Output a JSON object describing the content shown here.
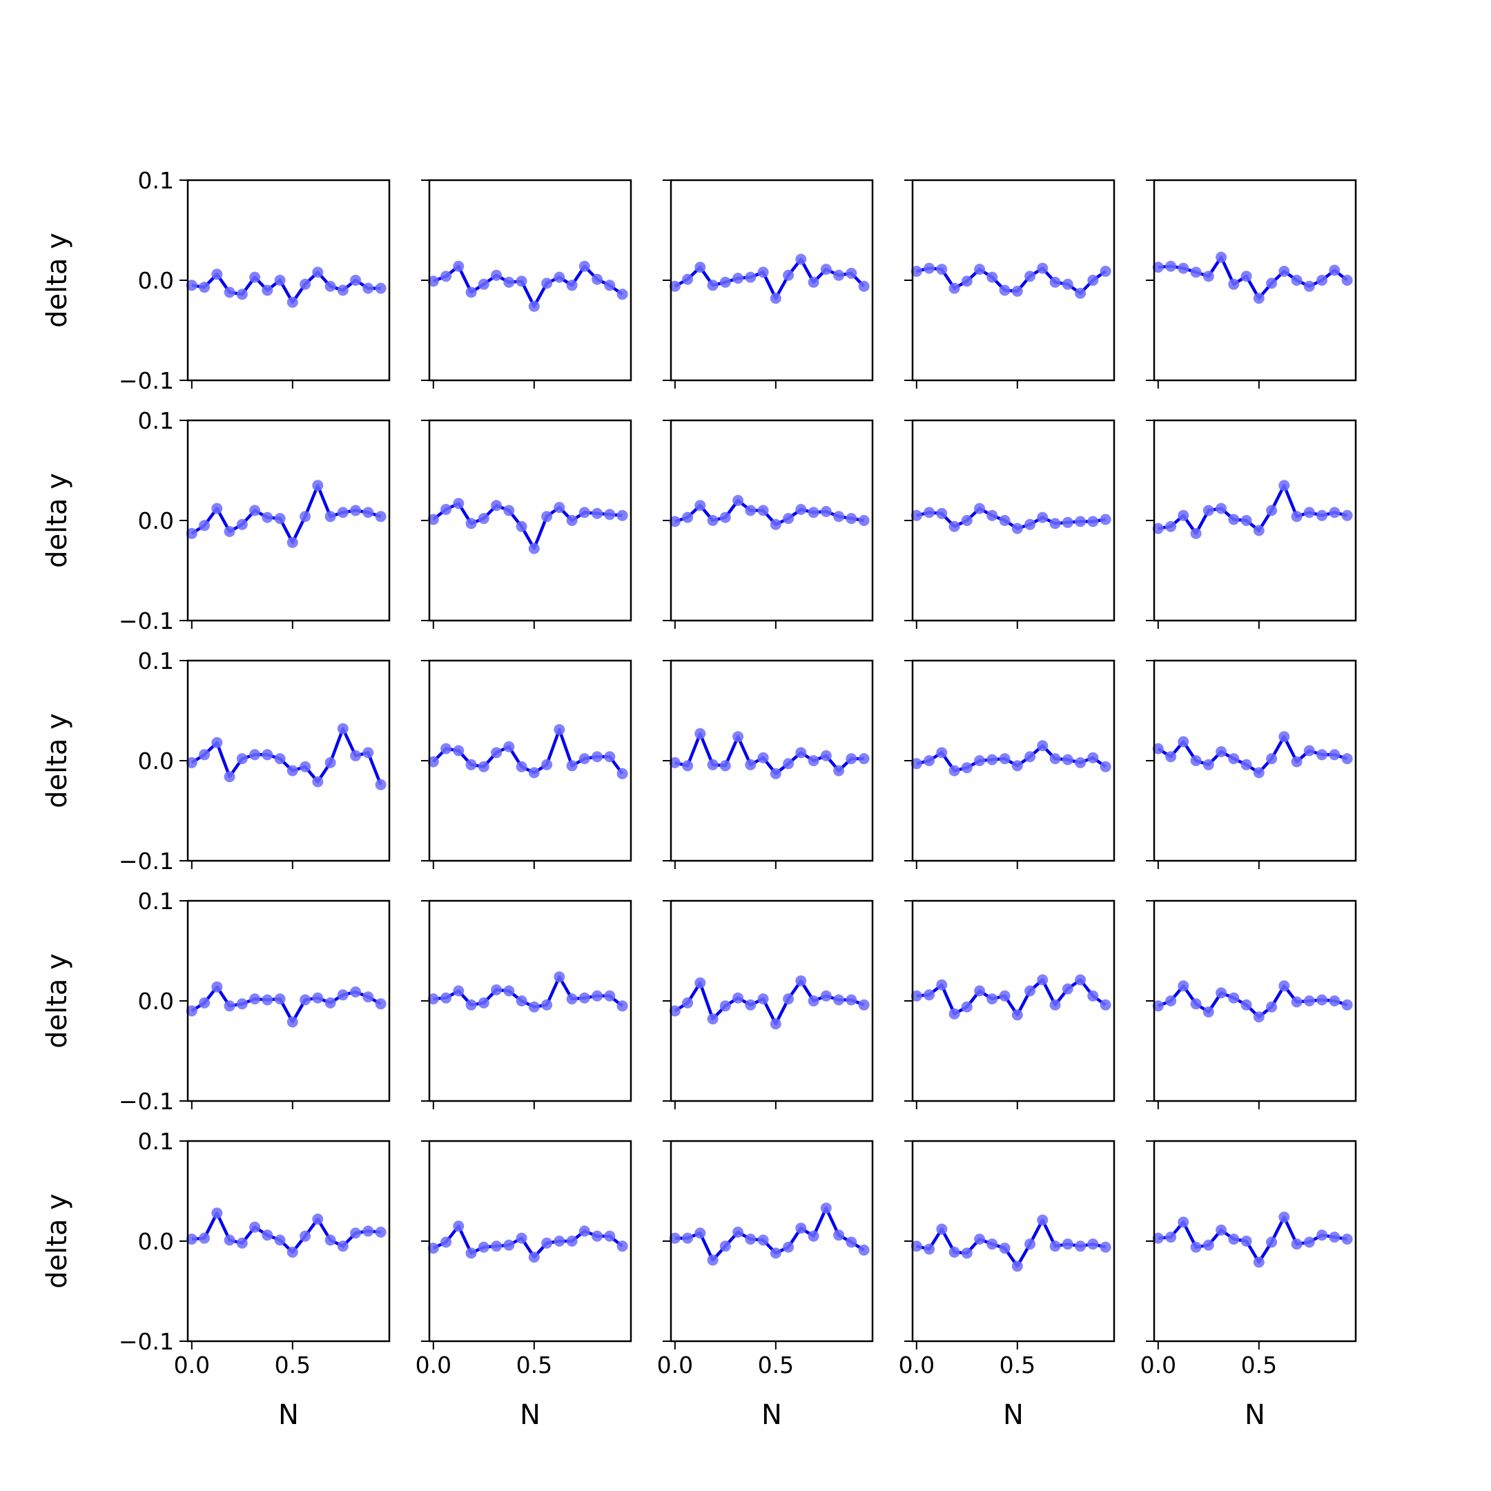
{
  "figure": {
    "layout": {
      "rows": 5,
      "cols": 5,
      "sharex": true,
      "sharey": true
    },
    "line_color": "#0000ee",
    "marker_color": "#6b6bff"
  },
  "chart_data": {
    "type": "line",
    "xlabel": "N",
    "ylabel": "delta y",
    "xlim": [
      -0.02,
      0.98
    ],
    "ylim": [
      -0.1,
      0.1
    ],
    "x_ticks": [
      0.0,
      0.5
    ],
    "x_tick_labels": [
      "0.0",
      "0.5"
    ],
    "y_ticks": [
      -0.1,
      0.0,
      0.1
    ],
    "y_tick_labels": [
      "−0.1",
      "0.0",
      "0.1"
    ],
    "x": [
      0.0,
      0.0625,
      0.125,
      0.1875,
      0.25,
      0.3125,
      0.375,
      0.4375,
      0.5,
      0.5625,
      0.625,
      0.6875,
      0.75,
      0.8125,
      0.875,
      0.9375
    ],
    "panels": [
      {
        "row": 0,
        "col": 0,
        "values": [
          -0.005,
          -0.007,
          0.006,
          -0.012,
          -0.014,
          0.003,
          -0.01,
          0.0,
          -0.022,
          -0.004,
          0.008,
          -0.006,
          -0.01,
          0.0,
          -0.008,
          -0.008
        ]
      },
      {
        "row": 0,
        "col": 1,
        "values": [
          -0.001,
          0.004,
          0.014,
          -0.012,
          -0.004,
          0.005,
          -0.002,
          -0.001,
          -0.026,
          -0.003,
          0.003,
          -0.005,
          0.014,
          0.001,
          -0.005,
          -0.014
        ]
      },
      {
        "row": 0,
        "col": 2,
        "values": [
          -0.006,
          0.001,
          0.013,
          -0.005,
          -0.002,
          0.002,
          0.003,
          0.008,
          -0.018,
          0.005,
          0.021,
          -0.002,
          0.011,
          0.005,
          0.007,
          -0.006
        ]
      },
      {
        "row": 0,
        "col": 3,
        "values": [
          0.009,
          0.012,
          0.011,
          -0.008,
          -0.001,
          0.011,
          0.003,
          -0.01,
          -0.011,
          0.004,
          0.012,
          -0.002,
          -0.004,
          -0.013,
          0.0,
          0.009
        ]
      },
      {
        "row": 0,
        "col": 4,
        "values": [
          0.013,
          0.014,
          0.012,
          0.008,
          0.004,
          0.023,
          -0.004,
          0.004,
          -0.018,
          -0.003,
          0.009,
          0.0,
          -0.006,
          0.0,
          0.01,
          0.0
        ]
      },
      {
        "row": 1,
        "col": 0,
        "values": [
          -0.013,
          -0.005,
          0.012,
          -0.011,
          -0.004,
          0.01,
          0.003,
          0.002,
          -0.022,
          0.004,
          0.035,
          0.004,
          0.008,
          0.01,
          0.008,
          0.004
        ]
      },
      {
        "row": 1,
        "col": 1,
        "values": [
          0.001,
          0.011,
          0.017,
          -0.003,
          0.002,
          0.015,
          0.01,
          -0.006,
          -0.028,
          0.004,
          0.013,
          0.0,
          0.008,
          0.007,
          0.006,
          0.005
        ]
      },
      {
        "row": 1,
        "col": 2,
        "values": [
          -0.001,
          0.003,
          0.015,
          0.0,
          0.003,
          0.02,
          0.01,
          0.01,
          -0.004,
          0.002,
          0.011,
          0.008,
          0.009,
          0.004,
          0.002,
          0.0
        ]
      },
      {
        "row": 1,
        "col": 3,
        "values": [
          0.005,
          0.008,
          0.007,
          -0.006,
          0.0,
          0.012,
          0.005,
          0.0,
          -0.008,
          -0.004,
          0.003,
          -0.003,
          -0.002,
          -0.001,
          -0.001,
          0.001
        ]
      },
      {
        "row": 1,
        "col": 4,
        "values": [
          -0.008,
          -0.006,
          0.005,
          -0.013,
          0.01,
          0.012,
          0.001,
          0.0,
          -0.01,
          0.01,
          0.035,
          0.004,
          0.008,
          0.005,
          0.008,
          0.005
        ]
      },
      {
        "row": 2,
        "col": 0,
        "values": [
          -0.002,
          0.006,
          0.018,
          -0.016,
          0.002,
          0.006,
          0.006,
          0.002,
          -0.01,
          -0.006,
          -0.021,
          -0.002,
          0.032,
          0.005,
          0.008,
          -0.024
        ]
      },
      {
        "row": 2,
        "col": 1,
        "values": [
          -0.001,
          0.012,
          0.01,
          -0.004,
          -0.006,
          0.008,
          0.014,
          -0.006,
          -0.012,
          -0.004,
          0.031,
          -0.005,
          0.002,
          0.004,
          0.004,
          -0.013
        ]
      },
      {
        "row": 2,
        "col": 2,
        "values": [
          -0.002,
          -0.005,
          0.027,
          -0.004,
          -0.005,
          0.024,
          -0.004,
          0.003,
          -0.013,
          -0.003,
          0.008,
          0.0,
          0.005,
          -0.01,
          0.002,
          0.002
        ]
      },
      {
        "row": 2,
        "col": 3,
        "values": [
          -0.003,
          0.0,
          0.008,
          -0.01,
          -0.007,
          0.0,
          0.001,
          0.002,
          -0.005,
          0.004,
          0.015,
          0.002,
          0.001,
          -0.002,
          0.003,
          -0.006
        ]
      },
      {
        "row": 2,
        "col": 4,
        "values": [
          0.012,
          0.004,
          0.019,
          0.0,
          -0.004,
          0.009,
          0.002,
          -0.004,
          -0.012,
          0.002,
          0.024,
          -0.001,
          0.01,
          0.006,
          0.006,
          0.002
        ]
      },
      {
        "row": 3,
        "col": 0,
        "values": [
          -0.01,
          -0.002,
          0.014,
          -0.005,
          -0.003,
          0.002,
          0.001,
          0.002,
          -0.021,
          0.001,
          0.003,
          -0.002,
          0.006,
          0.009,
          0.004,
          -0.003
        ]
      },
      {
        "row": 3,
        "col": 1,
        "values": [
          0.002,
          0.003,
          0.01,
          -0.004,
          -0.002,
          0.011,
          0.01,
          0.0,
          -0.006,
          -0.004,
          0.024,
          0.002,
          0.003,
          0.005,
          0.005,
          -0.005
        ]
      },
      {
        "row": 3,
        "col": 2,
        "values": [
          -0.01,
          -0.002,
          0.018,
          -0.018,
          -0.005,
          0.003,
          -0.004,
          0.002,
          -0.023,
          0.002,
          0.02,
          0.0,
          0.005,
          0.001,
          0.001,
          -0.004
        ]
      },
      {
        "row": 3,
        "col": 3,
        "values": [
          0.005,
          0.006,
          0.016,
          -0.013,
          -0.006,
          0.01,
          0.002,
          0.005,
          -0.014,
          0.01,
          0.021,
          -0.004,
          0.012,
          0.021,
          0.005,
          -0.004
        ]
      },
      {
        "row": 3,
        "col": 4,
        "values": [
          -0.005,
          0.0,
          0.015,
          -0.003,
          -0.011,
          0.008,
          0.003,
          -0.004,
          -0.016,
          -0.006,
          0.015,
          -0.001,
          0.0,
          0.001,
          0.0,
          -0.004
        ]
      },
      {
        "row": 4,
        "col": 0,
        "values": [
          0.002,
          0.003,
          0.028,
          0.001,
          -0.002,
          0.014,
          0.006,
          0.001,
          -0.011,
          0.005,
          0.022,
          0.001,
          -0.005,
          0.008,
          0.01,
          0.009
        ]
      },
      {
        "row": 4,
        "col": 1,
        "values": [
          -0.007,
          -0.001,
          0.015,
          -0.012,
          -0.006,
          -0.005,
          -0.004,
          0.003,
          -0.016,
          -0.002,
          0.0,
          0.0,
          0.01,
          0.005,
          0.005,
          -0.005
        ]
      },
      {
        "row": 4,
        "col": 2,
        "values": [
          0.003,
          0.003,
          0.008,
          -0.019,
          -0.005,
          0.009,
          0.002,
          0.001,
          -0.012,
          -0.006,
          0.013,
          0.005,
          0.033,
          0.006,
          -0.001,
          -0.009
        ]
      },
      {
        "row": 4,
        "col": 3,
        "values": [
          -0.005,
          -0.008,
          0.012,
          -0.011,
          -0.012,
          0.002,
          -0.003,
          -0.007,
          -0.025,
          -0.003,
          0.021,
          -0.005,
          -0.003,
          -0.005,
          -0.003,
          -0.006
        ]
      },
      {
        "row": 4,
        "col": 4,
        "values": [
          0.003,
          0.004,
          0.019,
          -0.006,
          -0.004,
          0.011,
          0.002,
          0.0,
          -0.021,
          -0.001,
          0.024,
          -0.003,
          -0.001,
          0.006,
          0.004,
          0.002
        ]
      }
    ]
  }
}
